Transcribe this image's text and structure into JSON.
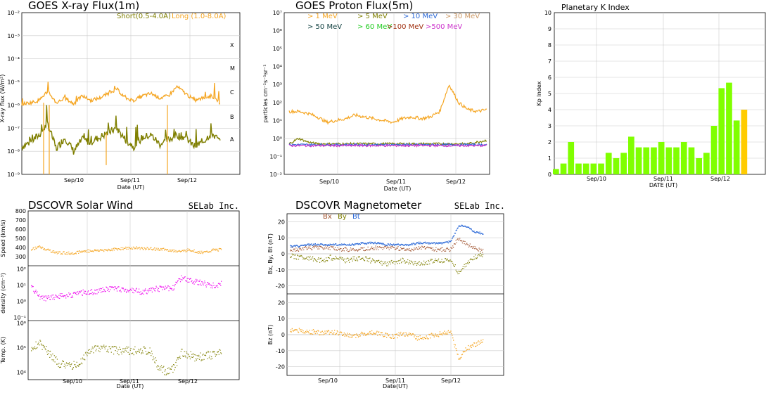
{
  "colors": {
    "short": "#7f7f00",
    "long": "#f5a623",
    "p1": "#f5a623",
    "p5": "#7f7f00",
    "p10": "#2e6bd8",
    "p30": "#cc9966",
    "p50": "#0f3f3f",
    "p60": "#22cc22",
    "p100": "#a03010",
    "p500": "#cc33cc",
    "kp_green": "#80ff00",
    "kp_yellow": "#ffcc00",
    "speed": "#f5a623",
    "density": "#ee00ee",
    "temp": "#7f7f00",
    "bx": "#a0522d",
    "by": "#7f7f00",
    "bt": "#2e6bd8",
    "bz": "#f5a623"
  },
  "common": {
    "date_ticks": [
      "Sep/10",
      "Sep/11",
      "Sep/12"
    ],
    "date_label": "Date (UT)",
    "date_label_kp": "DATE (UT)",
    "date_label_mag": "Date(UT)",
    "selab": "SELab Inc."
  },
  "chart_data": [
    {
      "id": "xray",
      "type": "line",
      "title": "GOES X-ray Flux(1m)",
      "ylabel": "X-ray flux (W/m²)",
      "xlabel": "Date (UT)",
      "yscale": "log",
      "ylim": [
        1e-09,
        0.01
      ],
      "y_tick_labels": [
        "10⁻²",
        "10⁻³",
        "10⁻⁴",
        "10⁻⁵",
        "10⁻⁶",
        "10⁻⁷",
        "10⁻⁸",
        "10⁻⁹"
      ],
      "flare_classes": [
        "X",
        "M",
        "C",
        "B",
        "A"
      ],
      "x_ticks": [
        "Sep/10",
        "Sep/11",
        "Sep/12"
      ],
      "series": [
        {
          "name": "Short(0.5-4.0A)",
          "color_key": "short",
          "baseline_log": -7.8,
          "noise": 0.55,
          "segments": [
            [
              -7.8,
              -7.6,
              -7.3,
              -6.8,
              -7.9,
              -7.4,
              -8.0,
              -7.5
            ],
            [
              -7.6,
              -7.4,
              -7.2,
              -7.0,
              -7.5,
              -7.8,
              -7.4,
              -7.3
            ],
            [
              -7.7,
              -7.5,
              -7.3,
              -7.4,
              -7.8,
              -7.6,
              -7.2,
              -7.6
            ]
          ]
        },
        {
          "name": "Long (1.0-8.0A)",
          "color_key": "long",
          "baseline_log": -5.9,
          "noise": 0.25,
          "segments": [
            [
              -5.95,
              -5.9,
              -5.8,
              -5.4,
              -5.9,
              -5.7,
              -5.95,
              -5.6
            ],
            [
              -5.8,
              -5.7,
              -5.5,
              -5.3,
              -5.7,
              -5.8,
              -5.6,
              -5.5
            ],
            [
              -5.7,
              -5.6,
              -5.2,
              -5.5,
              -5.8,
              -5.7,
              -5.6,
              -5.9
            ]
          ]
        }
      ]
    },
    {
      "id": "proton",
      "type": "line",
      "title": "GOES Proton Flux(5m)",
      "ylabel": "particles cm⁻²s⁻¹sr⁻¹",
      "xlabel": "Date (UT)",
      "yscale": "log",
      "ylim": [
        0.01,
        10000000.0
      ],
      "y_tick_labels": [
        "10⁷",
        "10⁶",
        "10⁵",
        "10⁴",
        "10³",
        "10²",
        "10¹",
        "10⁰",
        "10⁻¹",
        "10⁻²"
      ],
      "x_ticks": [
        "Sep/10",
        "Sep/11",
        "Sep/12"
      ],
      "legend": [
        {
          "label": "> 1 MeV",
          "color_key": "p1"
        },
        {
          "label": "> 5 MeV",
          "color_key": "p5"
        },
        {
          "label": "> 10 MeV",
          "color_key": "p10"
        },
        {
          "label": "> 30 MeV",
          "color_key": "p30"
        },
        {
          "label": "> 50 MeV",
          "color_key": "p50"
        },
        {
          "label": "> 60 MeV",
          "color_key": "p60"
        },
        {
          "label": ">100 MeV",
          "color_key": "p100"
        },
        {
          "label": ">500 MeV",
          "color_key": "p500"
        }
      ],
      "series": [
        {
          "name": "> 1 MeV",
          "color_key": "p1",
          "log_points": [
            1.5,
            1.5,
            1.4,
            1.2,
            0.9,
            1.0,
            1.1,
            1.3,
            1.2,
            1.1,
            1.0,
            0.9,
            1.1,
            1.2,
            1.1,
            1.2,
            1.5,
            3.0,
            2.0,
            1.6,
            1.5,
            1.6
          ]
        },
        {
          "name": "> 5 MeV",
          "color_key": "p5",
          "log_points": [
            -0.3,
            0.0,
            -0.2,
            -0.3,
            -0.3,
            -0.3,
            -0.3,
            -0.3,
            -0.3,
            -0.3,
            -0.3,
            -0.3,
            -0.3,
            -0.3,
            -0.3,
            -0.3,
            -0.3,
            -0.3,
            -0.3,
            -0.3,
            -0.2,
            -0.1
          ]
        },
        {
          "name": "> 10 MeV",
          "color_key": "p10",
          "log_points": [
            -0.35,
            -0.35,
            -0.35,
            -0.35,
            -0.35,
            -0.35,
            -0.35,
            -0.35,
            -0.35,
            -0.35,
            -0.35,
            -0.35,
            -0.35,
            -0.35,
            -0.35,
            -0.35,
            -0.35,
            -0.35,
            -0.35,
            -0.35,
            -0.35,
            -0.35
          ]
        },
        {
          "name": ">500 MeV",
          "color_key": "p500",
          "log_points": [
            -0.4,
            -0.4,
            -0.4,
            -0.4,
            -0.4,
            -0.4,
            -0.4,
            -0.4,
            -0.4,
            -0.4,
            -0.4,
            -0.4,
            -0.4,
            -0.4,
            -0.4,
            -0.4,
            -0.4,
            -0.4,
            -0.4,
            -0.4,
            -0.4,
            -0.4
          ]
        }
      ]
    },
    {
      "id": "kp",
      "type": "bar",
      "title": "Planetary K Index",
      "ylabel": "Kp Index",
      "xlabel": "DATE (UT)",
      "ylim": [
        0,
        10
      ],
      "y_ticks": [
        "0",
        "1",
        "2",
        "3",
        "4",
        "5",
        "6",
        "7",
        "8",
        "9",
        "10"
      ],
      "x_ticks": [
        "Sep/10",
        "Sep/11",
        "Sep/12"
      ],
      "values": [
        0.33,
        0.67,
        2.0,
        0.67,
        0.67,
        0.67,
        0.67,
        1.33,
        1.0,
        1.33,
        2.33,
        1.67,
        1.67,
        1.67,
        2.0,
        1.67,
        1.67,
        2.0,
        1.67,
        1.0,
        1.33,
        3.0,
        5.33,
        5.67,
        3.33,
        4.0
      ],
      "highlight_last": true
    },
    {
      "id": "solarwind",
      "type": "scatter",
      "title": "DSCOVR Solar Wind",
      "xlabel": "Date (UT)",
      "x_ticks": [
        "Sep/10",
        "Sep/11",
        "Sep/12"
      ],
      "panels": [
        {
          "name": "speed",
          "ylabel": "Speed (km/s)",
          "ylim": [
            200,
            800
          ],
          "y_ticks": [
            "800",
            "700",
            "600",
            "500",
            "400",
            "300"
          ],
          "color_key": "speed",
          "profile": [
            385,
            410,
            380,
            350,
            345,
            340,
            355,
            365,
            370,
            375,
            380,
            390,
            395,
            400,
            395,
            390,
            385,
            380,
            370,
            360,
            380,
            355,
            350,
            375,
            380
          ]
        },
        {
          "name": "density",
          "ylabel": "density (cm⁻³)",
          "ylim_log": [
            -1,
            2
          ],
          "y_tick_labels": [
            "10²",
            "10¹",
            "10⁰",
            "10⁻¹"
          ],
          "color_key": "density",
          "profile": [
            0.9,
            0.3,
            0.2,
            0.3,
            0.4,
            0.4,
            0.5,
            0.6,
            0.6,
            0.7,
            0.8,
            0.8,
            0.7,
            0.7,
            0.6,
            0.7,
            0.8,
            0.8,
            0.9,
            1.5,
            1.3,
            1.2,
            1.1,
            1.0,
            1.1
          ]
        },
        {
          "name": "temp",
          "ylabel": "Temp. (K)",
          "ylim_log": [
            3.7,
            6.0
          ],
          "y_tick_labels": [
            "10⁶",
            "10⁵",
            "10⁴"
          ],
          "color_key": "temp",
          "profile": [
            5.0,
            5.2,
            4.9,
            4.5,
            4.3,
            4.3,
            4.3,
            4.8,
            5.0,
            5.0,
            4.9,
            4.9,
            4.9,
            4.9,
            4.9,
            4.9,
            4.3,
            4.0,
            4.2,
            4.8,
            4.7,
            4.6,
            4.7,
            4.7,
            4.8
          ]
        }
      ]
    },
    {
      "id": "mag",
      "type": "scatter",
      "title": "DSCOVR Magnetometer",
      "xlabel": "Date(UT)",
      "x_ticks": [
        "Sep/10",
        "Sep/11",
        "Sep/12"
      ],
      "legend": [
        {
          "label": "Bx",
          "color_key": "bx"
        },
        {
          "label": "By",
          "color_key": "by"
        },
        {
          "label": "Bt",
          "color_key": "bt"
        }
      ],
      "panels": [
        {
          "name": "bxbybt",
          "ylabel": "Bx, By, Bt (nT)",
          "ylim": [
            -25,
            25
          ],
          "y_ticks": [
            "20",
            "10",
            "0",
            "-10",
            "-20"
          ],
          "bt": [
            5,
            5,
            6,
            6,
            6,
            6,
            6,
            6,
            6,
            7,
            7,
            7,
            6,
            6,
            6,
            6,
            7,
            7,
            7,
            7,
            8,
            18,
            17,
            14,
            13
          ],
          "bx": [
            3,
            3,
            4,
            4,
            4,
            4,
            3,
            3,
            3,
            3,
            4,
            4,
            4,
            4,
            3,
            3,
            4,
            4,
            3,
            3,
            3,
            10,
            6,
            4,
            2
          ],
          "by": [
            -1,
            -2,
            -2,
            -3,
            -4,
            -2,
            -3,
            -4,
            -3,
            -2,
            -4,
            -5,
            -6,
            -5,
            -4,
            -5,
            -6,
            -5,
            -4,
            -4,
            -3,
            -12,
            -6,
            -2,
            0
          ]
        },
        {
          "name": "bz",
          "ylabel": "Bz (nT)",
          "ylim": [
            -25,
            25
          ],
          "y_ticks": [
            "20",
            "10",
            "0",
            "-10",
            "-20"
          ],
          "bz": [
            3,
            3,
            2,
            2,
            1,
            2,
            1,
            0,
            -1,
            1,
            2,
            1,
            0,
            -1,
            1,
            0,
            -2,
            -1,
            0,
            1,
            2,
            -15,
            -8,
            -6,
            -4
          ]
        }
      ]
    }
  ]
}
